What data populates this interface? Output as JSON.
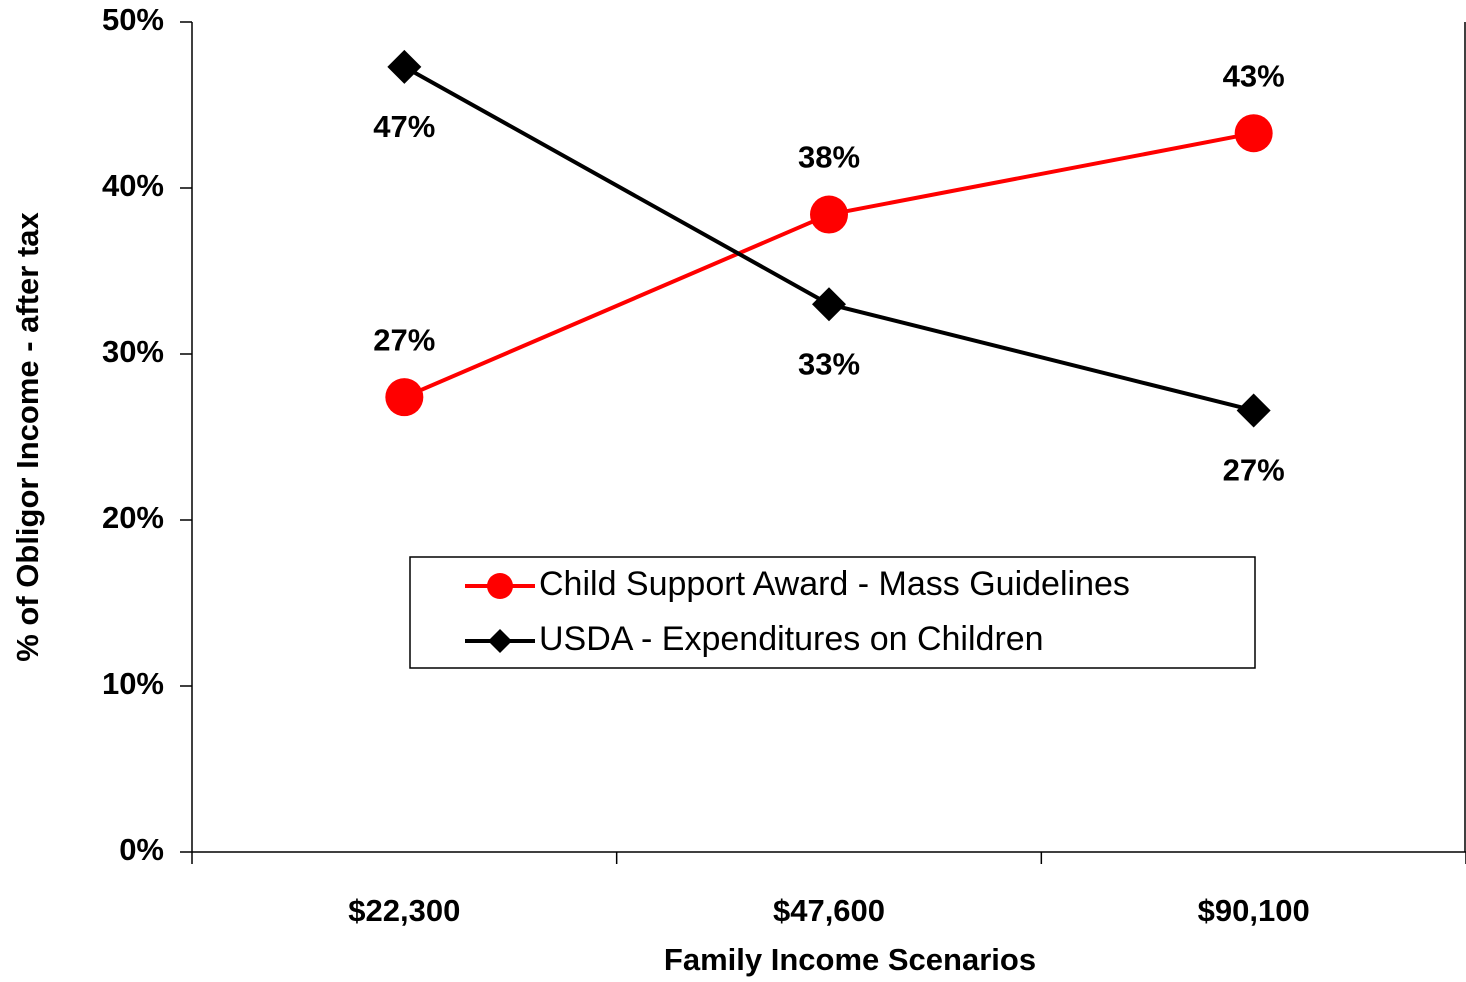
{
  "chart_data": {
    "type": "line",
    "x_label": "Family Income Scenarios",
    "y_label": "% of Obligor Income - after tax",
    "categories": [
      "$22,300",
      "$47,600",
      "$90,100"
    ],
    "series": [
      {
        "name": "Child Support Award - Mass Guidelines",
        "color": "#ff0000",
        "marker": "circle",
        "values": [
          27.4,
          38.4,
          43.3
        ],
        "value_labels": [
          "27%",
          "38%",
          "43%"
        ]
      },
      {
        "name": "USDA - Expenditures on Children",
        "color": "#000000",
        "marker": "diamond",
        "values": [
          47.3,
          33.0,
          26.6
        ],
        "value_labels": [
          "47%",
          "33%",
          "27%"
        ]
      }
    ],
    "ylim": [
      0,
      50
    ],
    "yticks": [
      {
        "value": 0,
        "label": "0%"
      },
      {
        "value": 10,
        "label": "10%"
      },
      {
        "value": 20,
        "label": "20%"
      },
      {
        "value": 30,
        "label": "30%"
      },
      {
        "value": 40,
        "label": "40%"
      },
      {
        "value": 50,
        "label": "50%"
      }
    ]
  }
}
